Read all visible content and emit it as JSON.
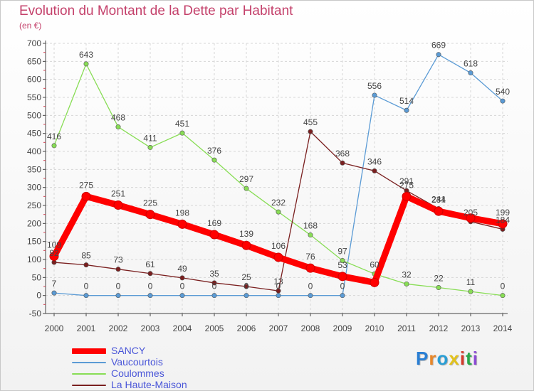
{
  "title": "Evolution du Montant de la Dette par Habitant",
  "subtitle": "(en €)",
  "logo": {
    "text": "Proxiti",
    "colors": [
      "#2a7fd4",
      "#e8872a",
      "#2a9ed4",
      "#e2c21c",
      "#d43a2a",
      "#2aa84a",
      "#8a4ad4"
    ]
  },
  "chart_data": {
    "type": "line",
    "x": [
      "2000",
      "2001",
      "2002",
      "2003",
      "2004",
      "2005",
      "2006",
      "2007",
      "2008",
      "2009",
      "2010",
      "2011",
      "2012",
      "2013",
      "2014"
    ],
    "ylim": [
      -50,
      700
    ],
    "yticks": [
      -50,
      0,
      50,
      100,
      150,
      200,
      250,
      300,
      350,
      400,
      450,
      500,
      550,
      600,
      650,
      700
    ],
    "grid": true,
    "legend_position": "bottom-left",
    "series": [
      {
        "name": "SANCY",
        "color": "#ff0000",
        "values": [
          109,
          275,
          251,
          225,
          198,
          169,
          139,
          106,
          76,
          53,
          36,
          275,
          234,
          215,
          199
        ],
        "labels": [
          "109",
          "275",
          "251",
          "225",
          "198",
          "169",
          "139",
          "106",
          "76",
          "53",
          "",
          "275",
          "234",
          "",
          "199"
        ]
      },
      {
        "name": "Vaucourtois",
        "color": "#5b9bd5",
        "values": [
          7,
          0,
          0,
          0,
          0,
          0,
          0,
          0,
          0,
          0,
          556,
          514,
          669,
          618,
          540
        ],
        "labels": [
          "7",
          "0",
          "0",
          "0",
          "0",
          "0",
          "0",
          "0",
          "0",
          "0",
          "556",
          "514",
          "669",
          "618",
          "540"
        ]
      },
      {
        "name": "Coulommes",
        "color": "#88dd55",
        "values": [
          416,
          643,
          468,
          411,
          451,
          376,
          297,
          232,
          168,
          97,
          60,
          32,
          22,
          11,
          0
        ],
        "labels": [
          "416",
          "643",
          "468",
          "411",
          "451",
          "376",
          "297",
          "232",
          "168",
          "97",
          "60",
          "32",
          "22",
          "11",
          "0"
        ]
      },
      {
        "name": "La Haute-Maison",
        "color": "#7a1f1f",
        "values": [
          92,
          85,
          73,
          61,
          49,
          35,
          25,
          13,
          455,
          368,
          346,
          291,
          241,
          205,
          184
        ],
        "labels": [
          "92",
          "85",
          "73",
          "61",
          "49",
          "35",
          "25",
          "13",
          "455",
          "368",
          "346",
          "291",
          "241",
          "205",
          "184"
        ]
      }
    ]
  }
}
